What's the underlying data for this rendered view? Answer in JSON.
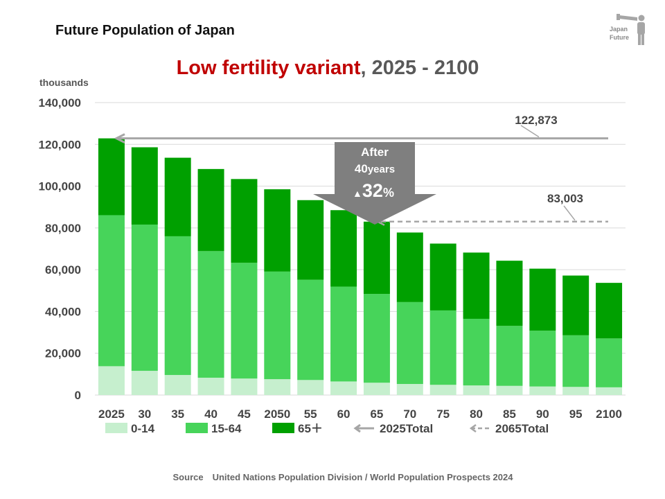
{
  "header": {
    "page_title": "Future Population of Japan",
    "logo_line1": "Japan",
    "logo_line2": "Future"
  },
  "chart_data": {
    "type": "bar",
    "stacked": true,
    "title_highlight": "Low fertility variant",
    "title_rest": ", 2025 - 2100",
    "ylabel": "thousands",
    "ylim": [
      0,
      140000
    ],
    "yticks": [
      0,
      20000,
      40000,
      60000,
      80000,
      100000,
      120000,
      140000
    ],
    "ytick_labels": [
      "0",
      "20,000",
      "40,000",
      "60,000",
      "80,000",
      "100,000",
      "120,000",
      "140,000"
    ],
    "categories": [
      "2025",
      "30",
      "35",
      "40",
      "45",
      "2050",
      "55",
      "60",
      "65",
      "70",
      "75",
      "80",
      "85",
      "90",
      "95",
      "2100"
    ],
    "series": [
      {
        "name": "0-14",
        "color": "#c6efce",
        "values": [
          13800,
          11600,
          9600,
          8300,
          7900,
          7600,
          7200,
          6500,
          5900,
          5300,
          4900,
          4600,
          4400,
          4100,
          3900,
          3700
        ]
      },
      {
        "name": "15-64",
        "color": "#47d45a",
        "values": [
          72300,
          70000,
          66400,
          60600,
          55400,
          51500,
          48000,
          45400,
          42500,
          39200,
          35600,
          31900,
          28700,
          26700,
          24700,
          23400
        ]
      },
      {
        "name": "65＋",
        "color": "#00a000",
        "values": [
          36773,
          37000,
          37600,
          39300,
          40100,
          39400,
          38100,
          36600,
          34603,
          33300,
          32000,
          31700,
          31200,
          29700,
          28600,
          26600
        ]
      }
    ],
    "reference_lines": [
      {
        "name": "2025Total",
        "value": 122873,
        "label": "122,873",
        "style": "solid",
        "color": "#a6a6a6"
      },
      {
        "name": "2065Total",
        "value": 83003,
        "label": "83,003",
        "style": "dashed",
        "color": "#a6a6a6"
      }
    ],
    "callout": {
      "line1": "After",
      "line2_num": "40",
      "line2_unit": "years",
      "line3_mark": "▲",
      "line3_num": "32",
      "line3_unit": "%"
    },
    "legend": [
      "0-14",
      "15-64",
      "65＋",
      "2025Total",
      "2065Total"
    ],
    "legend_position": "bottom"
  },
  "footer": {
    "source": "Source　United Nations Population Division / World Population Prospects 2024"
  }
}
